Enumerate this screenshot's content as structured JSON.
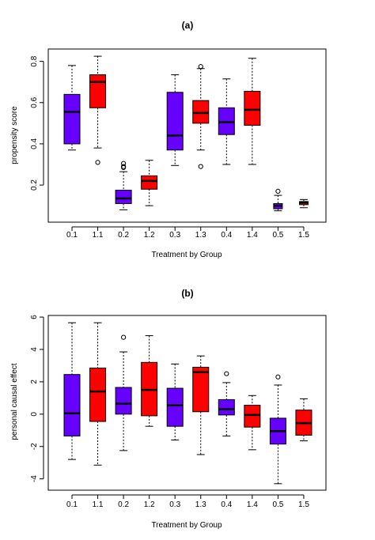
{
  "colors": {
    "blue": "#6600ff",
    "red": "#ff0000",
    "line": "#000000"
  },
  "chart_data": [
    {
      "type": "box",
      "title": "(a)",
      "xlabel": "Treatment by Group",
      "ylabel": "propensity score",
      "ylim": [
        0.02,
        0.86
      ],
      "yticks": [
        0.2,
        0.4,
        0.6,
        0.8
      ],
      "yticklabels": [
        "0.2",
        "0.4",
        "0.6",
        "0.8"
      ],
      "categories": [
        "0.1",
        "1.1",
        "0.2",
        "1.2",
        "0.3",
        "1.3",
        "0.4",
        "1.4",
        "0.5",
        "1.5"
      ],
      "boxes": [
        {
          "color": "blue",
          "min": 0.37,
          "q1": 0.4,
          "median": 0.555,
          "q3": 0.64,
          "max": 0.78,
          "outliers": []
        },
        {
          "color": "red",
          "min": 0.38,
          "q1": 0.575,
          "median": 0.7,
          "q3": 0.735,
          "max": 0.825,
          "outliers": [
            0.31
          ]
        },
        {
          "color": "blue",
          "min": 0.08,
          "q1": 0.11,
          "median": 0.135,
          "q3": 0.175,
          "max": 0.265,
          "outliers": [
            0.285,
            0.29,
            0.305
          ]
        },
        {
          "color": "red",
          "min": 0.1,
          "q1": 0.18,
          "median": 0.22,
          "q3": 0.245,
          "max": 0.32,
          "outliers": []
        },
        {
          "color": "blue",
          "min": 0.295,
          "q1": 0.37,
          "median": 0.44,
          "q3": 0.65,
          "max": 0.735,
          "outliers": []
        },
        {
          "color": "red",
          "min": 0.37,
          "q1": 0.5,
          "median": 0.55,
          "q3": 0.61,
          "max": 0.765,
          "outliers": [
            0.29,
            0.775
          ]
        },
        {
          "color": "blue",
          "min": 0.3,
          "q1": 0.445,
          "median": 0.505,
          "q3": 0.575,
          "max": 0.715,
          "outliers": []
        },
        {
          "color": "red",
          "min": 0.3,
          "q1": 0.49,
          "median": 0.565,
          "q3": 0.655,
          "max": 0.815,
          "outliers": []
        },
        {
          "color": "blue",
          "min": 0.075,
          "q1": 0.085,
          "median": 0.1,
          "q3": 0.11,
          "max": 0.15,
          "outliers": [
            0.17
          ]
        },
        {
          "color": "red",
          "min": 0.09,
          "q1": 0.105,
          "median": 0.115,
          "q3": 0.12,
          "max": 0.13,
          "outliers": []
        }
      ]
    },
    {
      "type": "box",
      "title": "(b)",
      "xlabel": "Treatment by Group",
      "ylabel": "personal causal effect",
      "ylim": [
        -4.7,
        6.1
      ],
      "yticks": [
        -4,
        -2,
        0,
        2,
        4,
        6
      ],
      "yticklabels": [
        "-4",
        "-2",
        "0",
        "2",
        "4",
        "6"
      ],
      "categories": [
        "0.1",
        "1.1",
        "0.2",
        "1.2",
        "0.3",
        "1.3",
        "0.4",
        "1.4",
        "0.5",
        "1.5"
      ],
      "boxes": [
        {
          "color": "blue",
          "min": -2.8,
          "q1": -1.35,
          "median": 0.05,
          "q3": 2.45,
          "max": 5.65,
          "outliers": []
        },
        {
          "color": "red",
          "min": -3.15,
          "q1": -0.45,
          "median": 1.4,
          "q3": 2.85,
          "max": 5.65,
          "outliers": []
        },
        {
          "color": "blue",
          "min": -2.25,
          "q1": 0.0,
          "median": 0.65,
          "q3": 1.65,
          "max": 3.85,
          "outliers": [
            4.75
          ]
        },
        {
          "color": "red",
          "min": -0.75,
          "q1": -0.1,
          "median": 1.5,
          "q3": 3.2,
          "max": 4.85,
          "outliers": []
        },
        {
          "color": "blue",
          "min": -1.6,
          "q1": -0.75,
          "median": 0.55,
          "q3": 1.6,
          "max": 3.1,
          "outliers": []
        },
        {
          "color": "red",
          "min": -2.5,
          "q1": 0.15,
          "median": 2.6,
          "q3": 2.9,
          "max": 3.6,
          "outliers": []
        },
        {
          "color": "blue",
          "min": -1.35,
          "q1": -0.05,
          "median": 0.3,
          "q3": 0.9,
          "max": 1.95,
          "outliers": [
            2.5
          ]
        },
        {
          "color": "red",
          "min": -2.2,
          "q1": -0.8,
          "median": -0.05,
          "q3": 0.55,
          "max": 1.15,
          "outliers": []
        },
        {
          "color": "blue",
          "min": -4.3,
          "q1": -1.85,
          "median": -1.05,
          "q3": -0.25,
          "max": 1.8,
          "outliers": [
            2.3
          ]
        },
        {
          "color": "red",
          "min": -1.65,
          "q1": -1.3,
          "median": -0.55,
          "q3": 0.25,
          "max": 0.95,
          "outliers": []
        }
      ]
    }
  ]
}
